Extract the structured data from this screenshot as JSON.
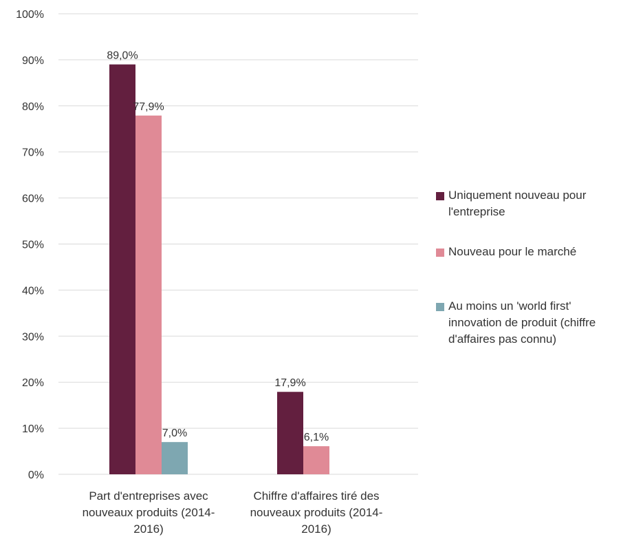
{
  "chart_data": {
    "type": "bar",
    "categories": [
      "Part d'entreprises avec nouveaux produits (2014-2016)",
      "Chiffre d'affaires tiré des nouveaux produits (2014-2016)"
    ],
    "category_lines": [
      [
        "Part d'entreprises avec",
        "nouveaux produits (2014-",
        "2016)"
      ],
      [
        "Chiffre d'affaires tiré des",
        "nouveaux produits (2014-",
        "2016)"
      ]
    ],
    "series": [
      {
        "name": "Uniquement nouveau pour l'entreprise",
        "legend_lines": [
          "Uniquement nouveau pour",
          "l'entreprise"
        ],
        "color": "#631f3f",
        "values": [
          89.0,
          17.9
        ],
        "labels": [
          "89,0%",
          "17,9%"
        ]
      },
      {
        "name": "Nouveau pour le marché",
        "legend_lines": [
          "Nouveau pour le marché"
        ],
        "color": "#e08a96",
        "values": [
          77.9,
          6.1
        ],
        "labels": [
          "77,9%",
          "6,1%"
        ]
      },
      {
        "name": "Au moins un 'world first' innovation de produit (chiffre d'affaires pas connu)",
        "legend_lines": [
          "Au moins un 'world first'",
          "innovation de produit (chiffre",
          "d'affaires pas connu)"
        ],
        "color": "#7ea7b1",
        "values": [
          7.0,
          null
        ],
        "labels": [
          "7,0%",
          ""
        ]
      }
    ],
    "ylim": [
      0,
      100
    ],
    "yticks": [
      0,
      10,
      20,
      30,
      40,
      50,
      60,
      70,
      80,
      90,
      100
    ],
    "ytick_labels": [
      "0%",
      "10%",
      "20%",
      "30%",
      "40%",
      "50%",
      "60%",
      "70%",
      "80%",
      "90%",
      "100%"
    ],
    "grid": true,
    "legend_position": "right"
  }
}
